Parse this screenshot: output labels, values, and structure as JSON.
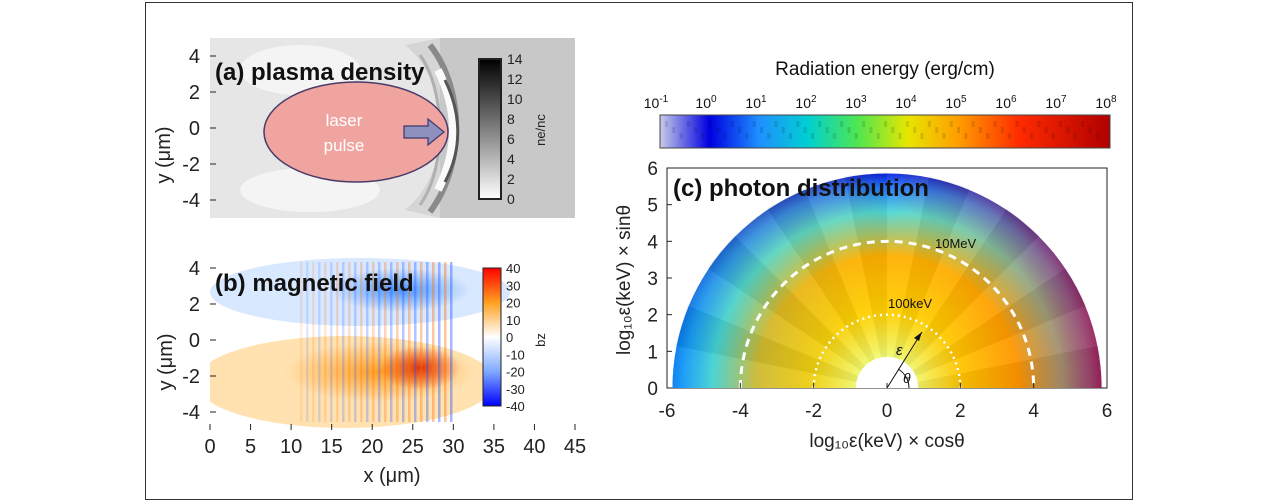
{
  "chart_data": [
    {
      "type": "heatmap",
      "panel": "a",
      "title": "(a) plasma density",
      "ylabel": "y (μm)",
      "yticks": [
        4,
        2,
        0,
        -2,
        -4
      ],
      "xlim": [
        0,
        45
      ],
      "ylim": [
        -5,
        5
      ],
      "annotation": [
        "laser",
        "pulse"
      ],
      "colorbar": {
        "label": "ne/nc",
        "ticks": [
          14,
          12,
          10,
          8,
          6,
          4,
          2,
          0
        ],
        "range": [
          0,
          14
        ],
        "colors": [
          "#ffffff",
          "#000000"
        ]
      }
    },
    {
      "type": "heatmap",
      "panel": "b",
      "title": "(b) magnetic field",
      "ylabel": "y (μm)",
      "xlabel": "x (μm)",
      "yticks": [
        4,
        2,
        0,
        -2,
        -4
      ],
      "xticks": [
        0,
        5,
        10,
        15,
        20,
        25,
        30,
        35,
        40,
        45
      ],
      "xlim": [
        0,
        45
      ],
      "ylim": [
        -5,
        5
      ],
      "colorbar": {
        "label": "bz",
        "ticks": [
          40,
          30,
          20,
          10,
          0,
          -10,
          -20,
          -30,
          -40
        ],
        "range": [
          -40,
          40
        ],
        "colors": [
          "#0000ff",
          "#ffffff",
          "#ff0000"
        ]
      }
    },
    {
      "type": "heatmap",
      "panel": "c",
      "title": "(c) photon distribution",
      "xlabel": "log₁₀ε(keV) × cosθ",
      "ylabel": "log₁₀ε(keV) × sinθ",
      "xticks": [
        -6,
        -4,
        -2,
        0,
        2,
        4,
        6
      ],
      "yticks": [
        0,
        1,
        2,
        3,
        4,
        5,
        6
      ],
      "xlim": [
        -6,
        6
      ],
      "ylim": [
        0,
        6
      ],
      "contours": [
        {
          "label": "100keV",
          "radius": 2
        },
        {
          "label": "10MeV",
          "radius": 4
        }
      ],
      "symbols": {
        "energy": "ε",
        "angle": "θ"
      },
      "colorbar": {
        "label": "Radiation energy (erg/cm)",
        "tick_labels": [
          "10-1",
          "100",
          "101",
          "102",
          "103",
          "104",
          "105",
          "106",
          "107",
          "108"
        ],
        "tick_base": "10",
        "tick_exponents": [
          "-1",
          "0",
          "1",
          "2",
          "3",
          "4",
          "5",
          "6",
          "7",
          "8"
        ],
        "colors": [
          "#bfc2e6",
          "#0000e6",
          "#1e90ff",
          "#00d2d2",
          "#50e650",
          "#e6e600",
          "#ff9c00",
          "#ff2a00",
          "#c80000"
        ]
      }
    }
  ]
}
